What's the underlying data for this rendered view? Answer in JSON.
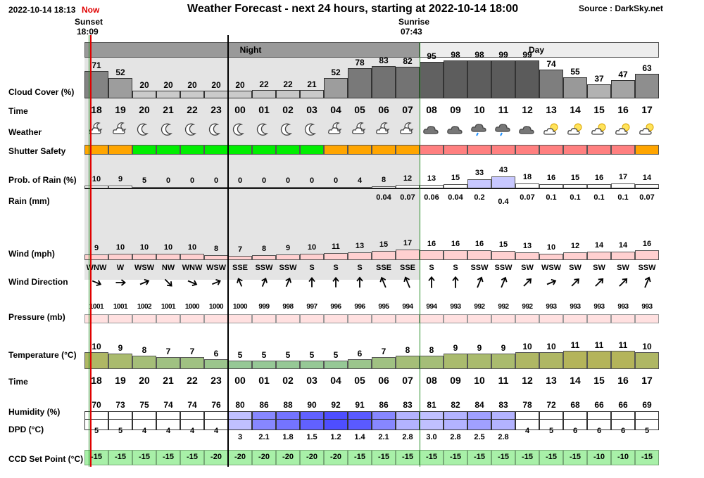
{
  "header": {
    "datetime": "2022-10-14 18:13",
    "now_label": "Now",
    "title": "Weather Forecast - next 24 hours, starting at 2022-10-14 18:00",
    "source": "Source : DarkSky.net",
    "sunset_label": "Sunset",
    "sunset_time": "18:09",
    "sunrise_label": "Sunrise",
    "sunrise_time": "07:43",
    "night_label": "Night",
    "day_label": "Day"
  },
  "colors": {
    "now_line": "#e00000",
    "night_bg": "#e4e4e4",
    "night_band": "#999999",
    "day_band": "#ededed",
    "safety_orange": "#ffa500",
    "safety_green": "#00ee00",
    "safety_red": "#ff8080",
    "dew_low": "#ffffff",
    "dew_high": "#4040ff",
    "ccd_green": "#a8f0a8"
  },
  "labels": {
    "cloud": "Cloud Cover (%)",
    "time": "Time",
    "weather": "Weather",
    "safety": "Shutter Safety",
    "prob_rain": "Prob. of Rain (%)",
    "rain": "Rain (mm)",
    "wind": "Wind (mph)",
    "wind_dir": "Wind Direction",
    "pressure": "Pressure (mb)",
    "temperature": "Temperature (°C)",
    "time2": "Time",
    "humidity": "Humidity (%)",
    "dpd": "DPD (°C)",
    "ccd": "CCD Set Point (°C)"
  },
  "forecast": {
    "hours": [
      "18",
      "19",
      "20",
      "21",
      "22",
      "23",
      "00",
      "01",
      "02",
      "03",
      "04",
      "05",
      "06",
      "07",
      "08",
      "09",
      "10",
      "11",
      "12",
      "13",
      "14",
      "15",
      "16",
      "17"
    ],
    "is_night": [
      true,
      true,
      true,
      true,
      true,
      true,
      true,
      true,
      true,
      true,
      true,
      true,
      true,
      true,
      false,
      false,
      false,
      false,
      false,
      false,
      false,
      false,
      false,
      false
    ],
    "cloud_cover": [
      71,
      52,
      20,
      20,
      20,
      20,
      20,
      22,
      22,
      21,
      52,
      78,
      83,
      82,
      95,
      98,
      98,
      99,
      99,
      74,
      55,
      37,
      47,
      63
    ],
    "weather_icons": [
      "partly-cloudy-night-icon",
      "partly-cloudy-night-icon",
      "clear-night-icon",
      "clear-night-icon",
      "clear-night-icon",
      "clear-night-icon",
      "clear-night-icon",
      "clear-night-icon",
      "clear-night-icon",
      "clear-night-icon",
      "partly-cloudy-night-icon",
      "partly-cloudy-night-icon",
      "partly-cloudy-night-icon",
      "partly-cloudy-night-icon",
      "cloudy-icon",
      "cloudy-icon",
      "rain-icon",
      "rain-icon",
      "cloudy-icon",
      "partly-cloudy-day-icon",
      "partly-cloudy-day-icon",
      "partly-cloudy-day-icon",
      "partly-cloudy-day-icon",
      "partly-cloudy-day-icon"
    ],
    "shutter_safety": [
      "orange",
      "orange",
      "green",
      "green",
      "green",
      "green",
      "green",
      "green",
      "green",
      "green",
      "orange",
      "orange",
      "orange",
      "orange",
      "red",
      "red",
      "red",
      "red",
      "red",
      "red",
      "red",
      "red",
      "red",
      "orange"
    ],
    "prob_rain": [
      10,
      9,
      5,
      0,
      0,
      0,
      0,
      0,
      0,
      0,
      0,
      4,
      8,
      12,
      13,
      15,
      33,
      43,
      18,
      16,
      15,
      16,
      17,
      14
    ],
    "rain_mm": [
      "",
      "",
      "",
      "",
      "",
      "",
      "",
      "",
      "",
      "",
      "",
      "",
      "0.04",
      "0.07",
      "0.06",
      "0.04",
      "0.2",
      "0.4",
      "0.07",
      "0.1",
      "0.1",
      "0.1",
      "0.1",
      "0.07"
    ],
    "wind_mph": [
      9,
      10,
      10,
      10,
      10,
      8,
      7,
      8,
      9,
      10,
      11,
      13,
      15,
      17,
      16,
      16,
      16,
      15,
      13,
      10,
      12,
      14,
      14,
      16
    ],
    "wind_dir": [
      "WNW",
      "W",
      "WSW",
      "NW",
      "WNW",
      "WSW",
      "SSE",
      "SSW",
      "SSW",
      "S",
      "S",
      "S",
      "SSE",
      "SSE",
      "S",
      "S",
      "SSW",
      "SSW",
      "SW",
      "WSW",
      "SW",
      "SW",
      "SW",
      "SSW"
    ],
    "pressure": [
      1001,
      1001,
      1002,
      1001,
      1000,
      1000,
      1000,
      999,
      998,
      997,
      996,
      996,
      995,
      994,
      994,
      993,
      992,
      992,
      992,
      993,
      993,
      993,
      993,
      993
    ],
    "temperature": [
      10,
      9,
      8,
      7,
      7,
      6,
      5,
      5,
      5,
      5,
      5,
      6,
      7,
      8,
      8,
      9,
      9,
      9,
      10,
      10,
      11,
      11,
      11,
      10
    ],
    "humidity": [
      70,
      73,
      75,
      74,
      74,
      76,
      80,
      86,
      88,
      90,
      92,
      91,
      86,
      83,
      81,
      82,
      84,
      83,
      78,
      72,
      68,
      66,
      66,
      69
    ],
    "dpd": [
      "5",
      "5",
      "4",
      "4",
      "4",
      "4",
      "3",
      "2.1",
      "1.8",
      "1.5",
      "1.2",
      "1.4",
      "2.1",
      "2.8",
      "3.0",
      "2.8",
      "2.5",
      "2.8",
      "4",
      "5",
      "6",
      "6",
      "6",
      "5"
    ],
    "ccd_setpoint": [
      -15,
      -15,
      -15,
      -15,
      -15,
      -20,
      -20,
      -20,
      -20,
      -20,
      -20,
      -15,
      -15,
      -15,
      -15,
      -15,
      -15,
      -15,
      -15,
      -15,
      -15,
      -10,
      -10,
      -15
    ]
  }
}
